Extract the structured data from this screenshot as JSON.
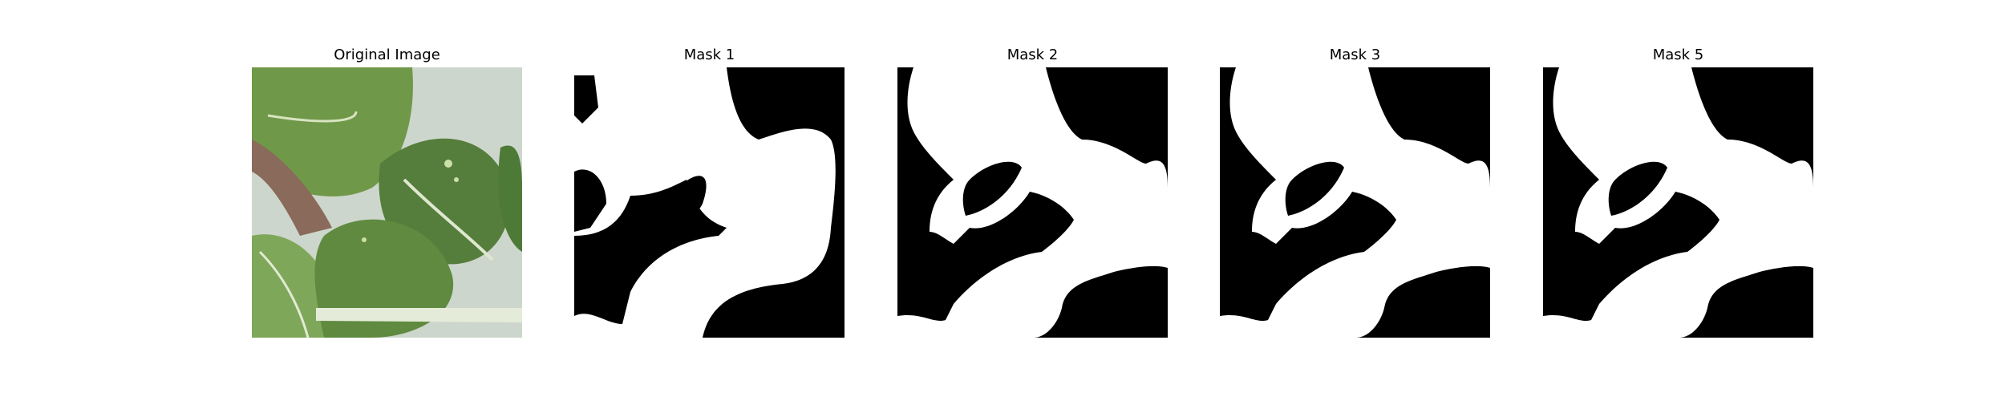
{
  "panels": [
    {
      "title": "Original Image",
      "kind": "photo",
      "subject": "green leafy vegetable leaves"
    },
    {
      "title": "Mask 1",
      "kind": "mask"
    },
    {
      "title": "Mask 2",
      "kind": "mask"
    },
    {
      "title": "Mask 3",
      "kind": "mask"
    },
    {
      "title": "Mask 5",
      "kind": "mask"
    }
  ],
  "colors": {
    "mask_foreground": "#ffffff",
    "mask_background": "#000000",
    "leaf_dark": "#3f6a35",
    "leaf_mid": "#6f9848",
    "leaf_light": "#9cbf6a",
    "backdrop": "#c9d1c8"
  }
}
